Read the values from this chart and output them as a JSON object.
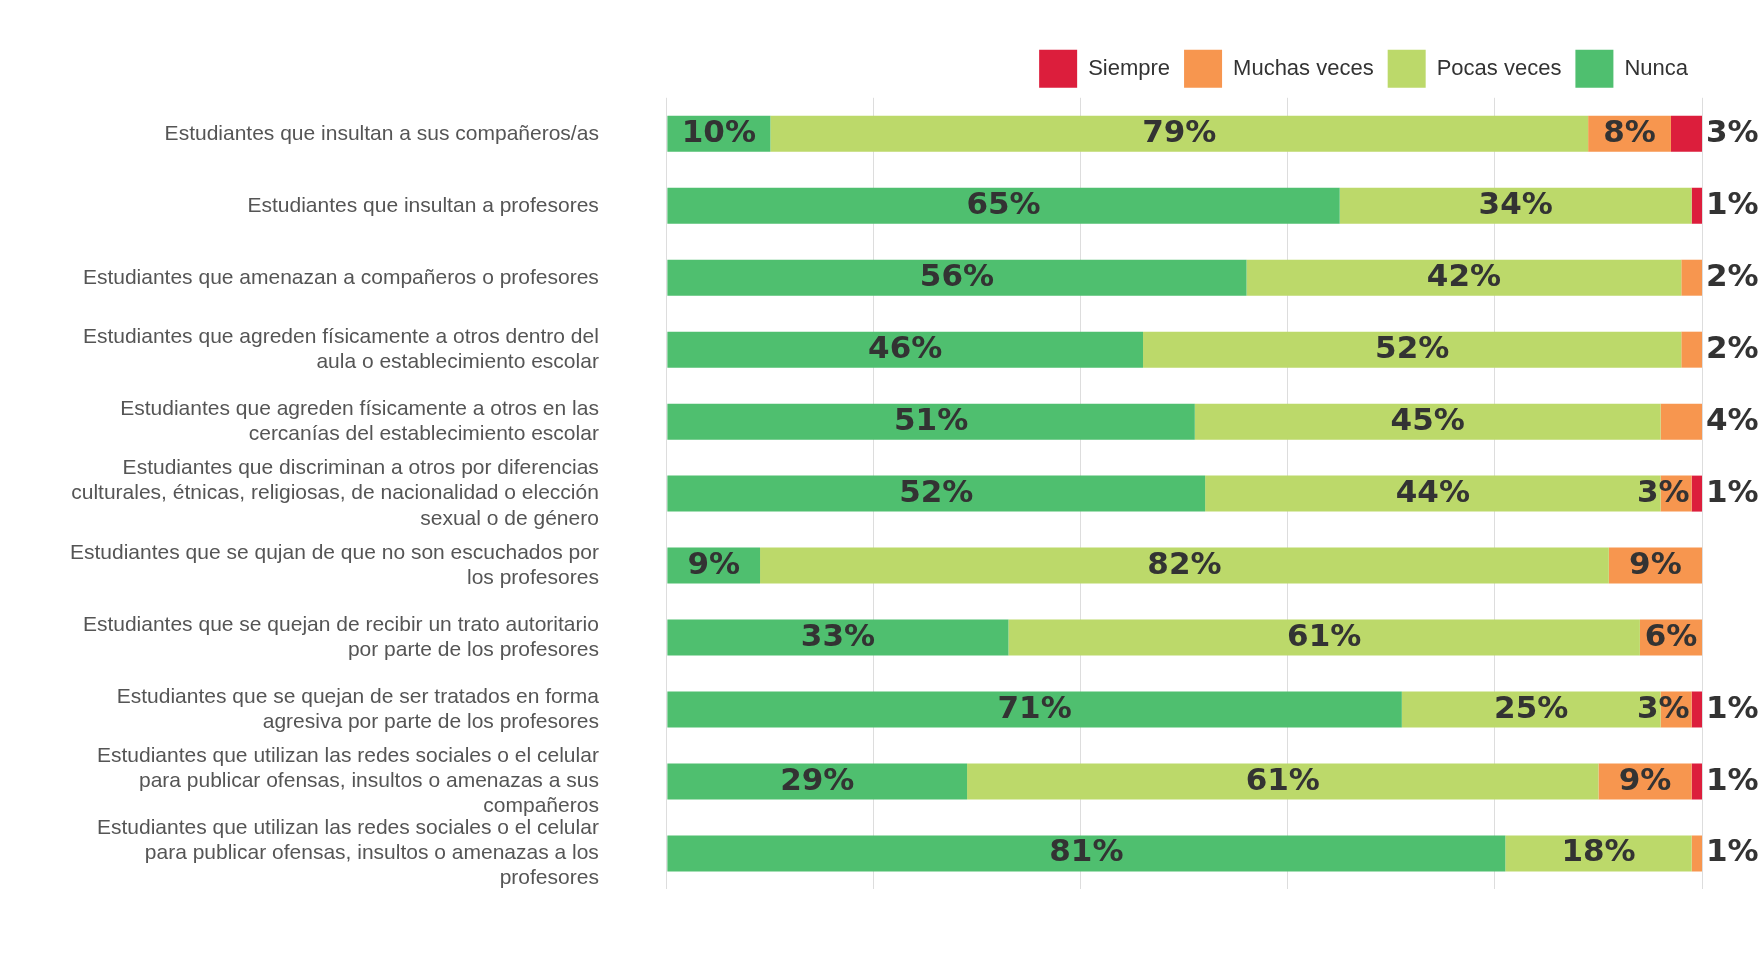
{
  "chart_data": {
    "type": "bar",
    "orientation": "horizontal",
    "stacked": true,
    "legend": "top right",
    "grid": "x",
    "tick_labels": "y",
    "xlim": [
      0,
      100
    ],
    "xticks": [
      {
        "value": 0,
        "label": null
      },
      {
        "value": 20,
        "label": null
      },
      {
        "value": 40,
        "label": null
      },
      {
        "value": 60,
        "label": null
      },
      {
        "value": 80,
        "label": null
      },
      {
        "value": 100,
        "label": null
      }
    ],
    "categories": [
      "Estudiantes que insultan a sus compañeros/as",
      "Estudiantes que insultan a profesores",
      "Estudiantes que amenazan a compañeros o profesores",
      "Estudiantes que agreden físicamente a otros dentro del aula o establecimiento escolar",
      "Estudiantes que agreden físicamente a otros en las cercanías del establecimiento escolar",
      "Estudiantes que discriminan a otros por diferencias culturales, étnicas, religiosas, de nacionalidad o elección sexual o de género",
      "Estudiantes que se qujan de que no son escuchados por los profesores",
      "Estudiantes que se quejan de recibir un trato autoritario por parte de los profesores",
      "Estudiantes que se quejan de ser tratados en forma agresiva por parte de los profesores",
      "Estudiantes que utilizan las redes sociales o el celular para publicar ofensas, insultos o amenazas a sus compañeros",
      "Estudiantes que utilizan las redes sociales o el celular para publicar ofensas, insultos o amenazas a los profesores"
    ],
    "series": [
      {
        "name": "Nunca",
        "color": "#4fbf6f",
        "values": [
          10,
          65,
          56,
          46,
          51,
          52,
          9,
          33,
          71,
          29,
          81
        ],
        "value_labels": [
          "10%",
          "65%",
          "56%",
          "46%",
          "51%",
          "52%",
          "9%",
          "33%",
          "71%",
          "29%",
          "81%"
        ]
      },
      {
        "name": "Pocas veces",
        "color": "#bcd96a",
        "values": [
          79,
          34,
          42,
          52,
          45,
          44,
          82,
          61,
          25,
          61,
          18
        ],
        "value_labels": [
          "79%",
          "34%",
          "42%",
          "52%",
          "45%",
          "44%",
          "82%",
          "61%",
          "25%",
          "61%",
          "18%"
        ]
      },
      {
        "name": "Muchas veces",
        "color": "#f7964f",
        "values": [
          8,
          null,
          2,
          2,
          4,
          3,
          9,
          6,
          3,
          9,
          1
        ],
        "value_labels": [
          "8%",
          null,
          "2%",
          "2%",
          "4%",
          "3%",
          "9%",
          "6%",
          "3%",
          "9%",
          "1%"
        ]
      },
      {
        "name": "Siempre",
        "color": "#dc1e3c",
        "values": [
          3,
          1,
          null,
          null,
          null,
          1,
          null,
          null,
          1,
          1,
          null
        ],
        "value_labels": [
          "3%",
          "1%",
          null,
          null,
          null,
          "1%",
          null,
          null,
          "1%",
          "1%",
          null
        ]
      }
    ]
  }
}
